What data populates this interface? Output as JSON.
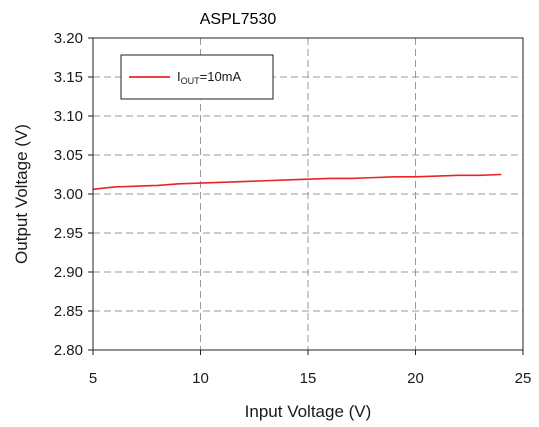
{
  "chart_data": {
    "type": "line",
    "title": "ASPL7530",
    "xlabel": "Input Voltage (V)",
    "ylabel": "Output Voltage (V)",
    "xlim": [
      5,
      25
    ],
    "ylim": [
      2.8,
      3.2
    ],
    "x_ticks": [
      "5",
      "10",
      "15",
      "20",
      "25"
    ],
    "y_ticks": [
      "2.80",
      "2.85",
      "2.90",
      "2.95",
      "3.00",
      "3.05",
      "3.10",
      "3.15",
      "3.20"
    ],
    "grid": true,
    "legend_position": "top-left",
    "series": [
      {
        "name": "I_OUT=10mA",
        "legend": {
          "main": "I",
          "sub": "OUT",
          "rest": "=10mA"
        },
        "color": "#e8262a",
        "x": [
          5,
          6,
          7,
          8,
          9,
          10,
          11,
          12,
          13,
          14,
          15,
          16,
          17,
          18,
          19,
          20,
          21,
          22,
          23,
          24
        ],
        "y": [
          3.006,
          3.009,
          3.01,
          3.011,
          3.013,
          3.014,
          3.015,
          3.016,
          3.017,
          3.018,
          3.019,
          3.02,
          3.02,
          3.021,
          3.022,
          3.022,
          3.023,
          3.024,
          3.024,
          3.025
        ]
      }
    ]
  }
}
